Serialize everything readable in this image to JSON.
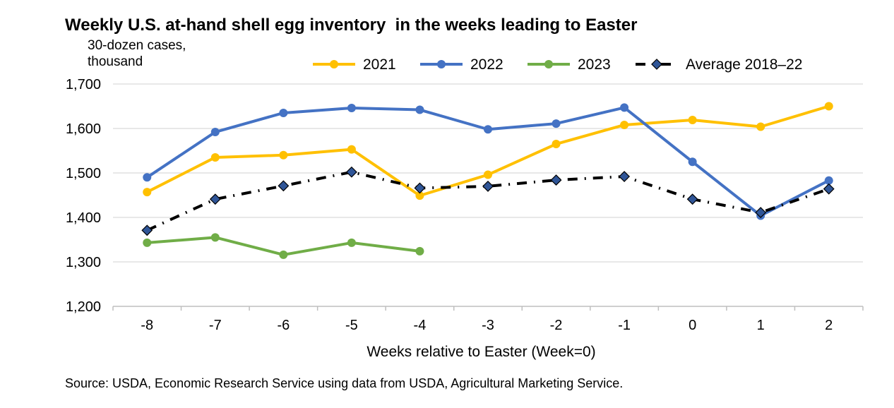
{
  "title": "Weekly U.S. at-hand shell egg inventory  in the weeks leading to Easter",
  "source": "Source: USDA, Economic Research Service using data from USDA, Agricultural Marketing Service.",
  "chart_data": {
    "type": "line",
    "title": "Weekly U.S. at-hand shell egg inventory  in the weeks leading to Easter",
    "xlabel": "Weeks relative to Easter (Week=0)",
    "ylabel": "30-dozen cases,\nthousand",
    "x": [
      "-8",
      "-7",
      "-6",
      "-5",
      "-4",
      "-3",
      "-2",
      "-1",
      "0",
      "1",
      "2"
    ],
    "ylim": [
      1200,
      1700
    ],
    "yticks": [
      1200,
      1300,
      1400,
      1500,
      1600,
      1700
    ],
    "ytick_labels": [
      "1,200",
      "1,300",
      "1,400",
      "1,500",
      "1,600",
      "1,700"
    ],
    "grid": "horizontal",
    "legend_position": "top",
    "series": [
      {
        "name": "2021",
        "color": "#FFC000",
        "style": "solid",
        "values": [
          1457,
          1535,
          1540,
          1553,
          1449,
          1496,
          1565,
          1608,
          1619,
          1604,
          1650
        ]
      },
      {
        "name": "2022",
        "color": "#4472C4",
        "style": "solid",
        "values": [
          1490,
          1592,
          1635,
          1646,
          1642,
          1598,
          1611,
          1647,
          1525,
          1404,
          1483
        ]
      },
      {
        "name": "2023",
        "color": "#70AD47",
        "style": "solid",
        "values": [
          1343,
          1355,
          1316,
          1343,
          1324,
          null,
          null,
          null,
          null,
          null,
          null
        ]
      },
      {
        "name": "Average 2018–22",
        "color": "#000000",
        "marker_color": "#2F5597",
        "style": "dashdot",
        "values": [
          1371,
          1441,
          1471,
          1502,
          1466,
          1470,
          1484,
          1492,
          1441,
          1411,
          1464
        ]
      }
    ]
  }
}
